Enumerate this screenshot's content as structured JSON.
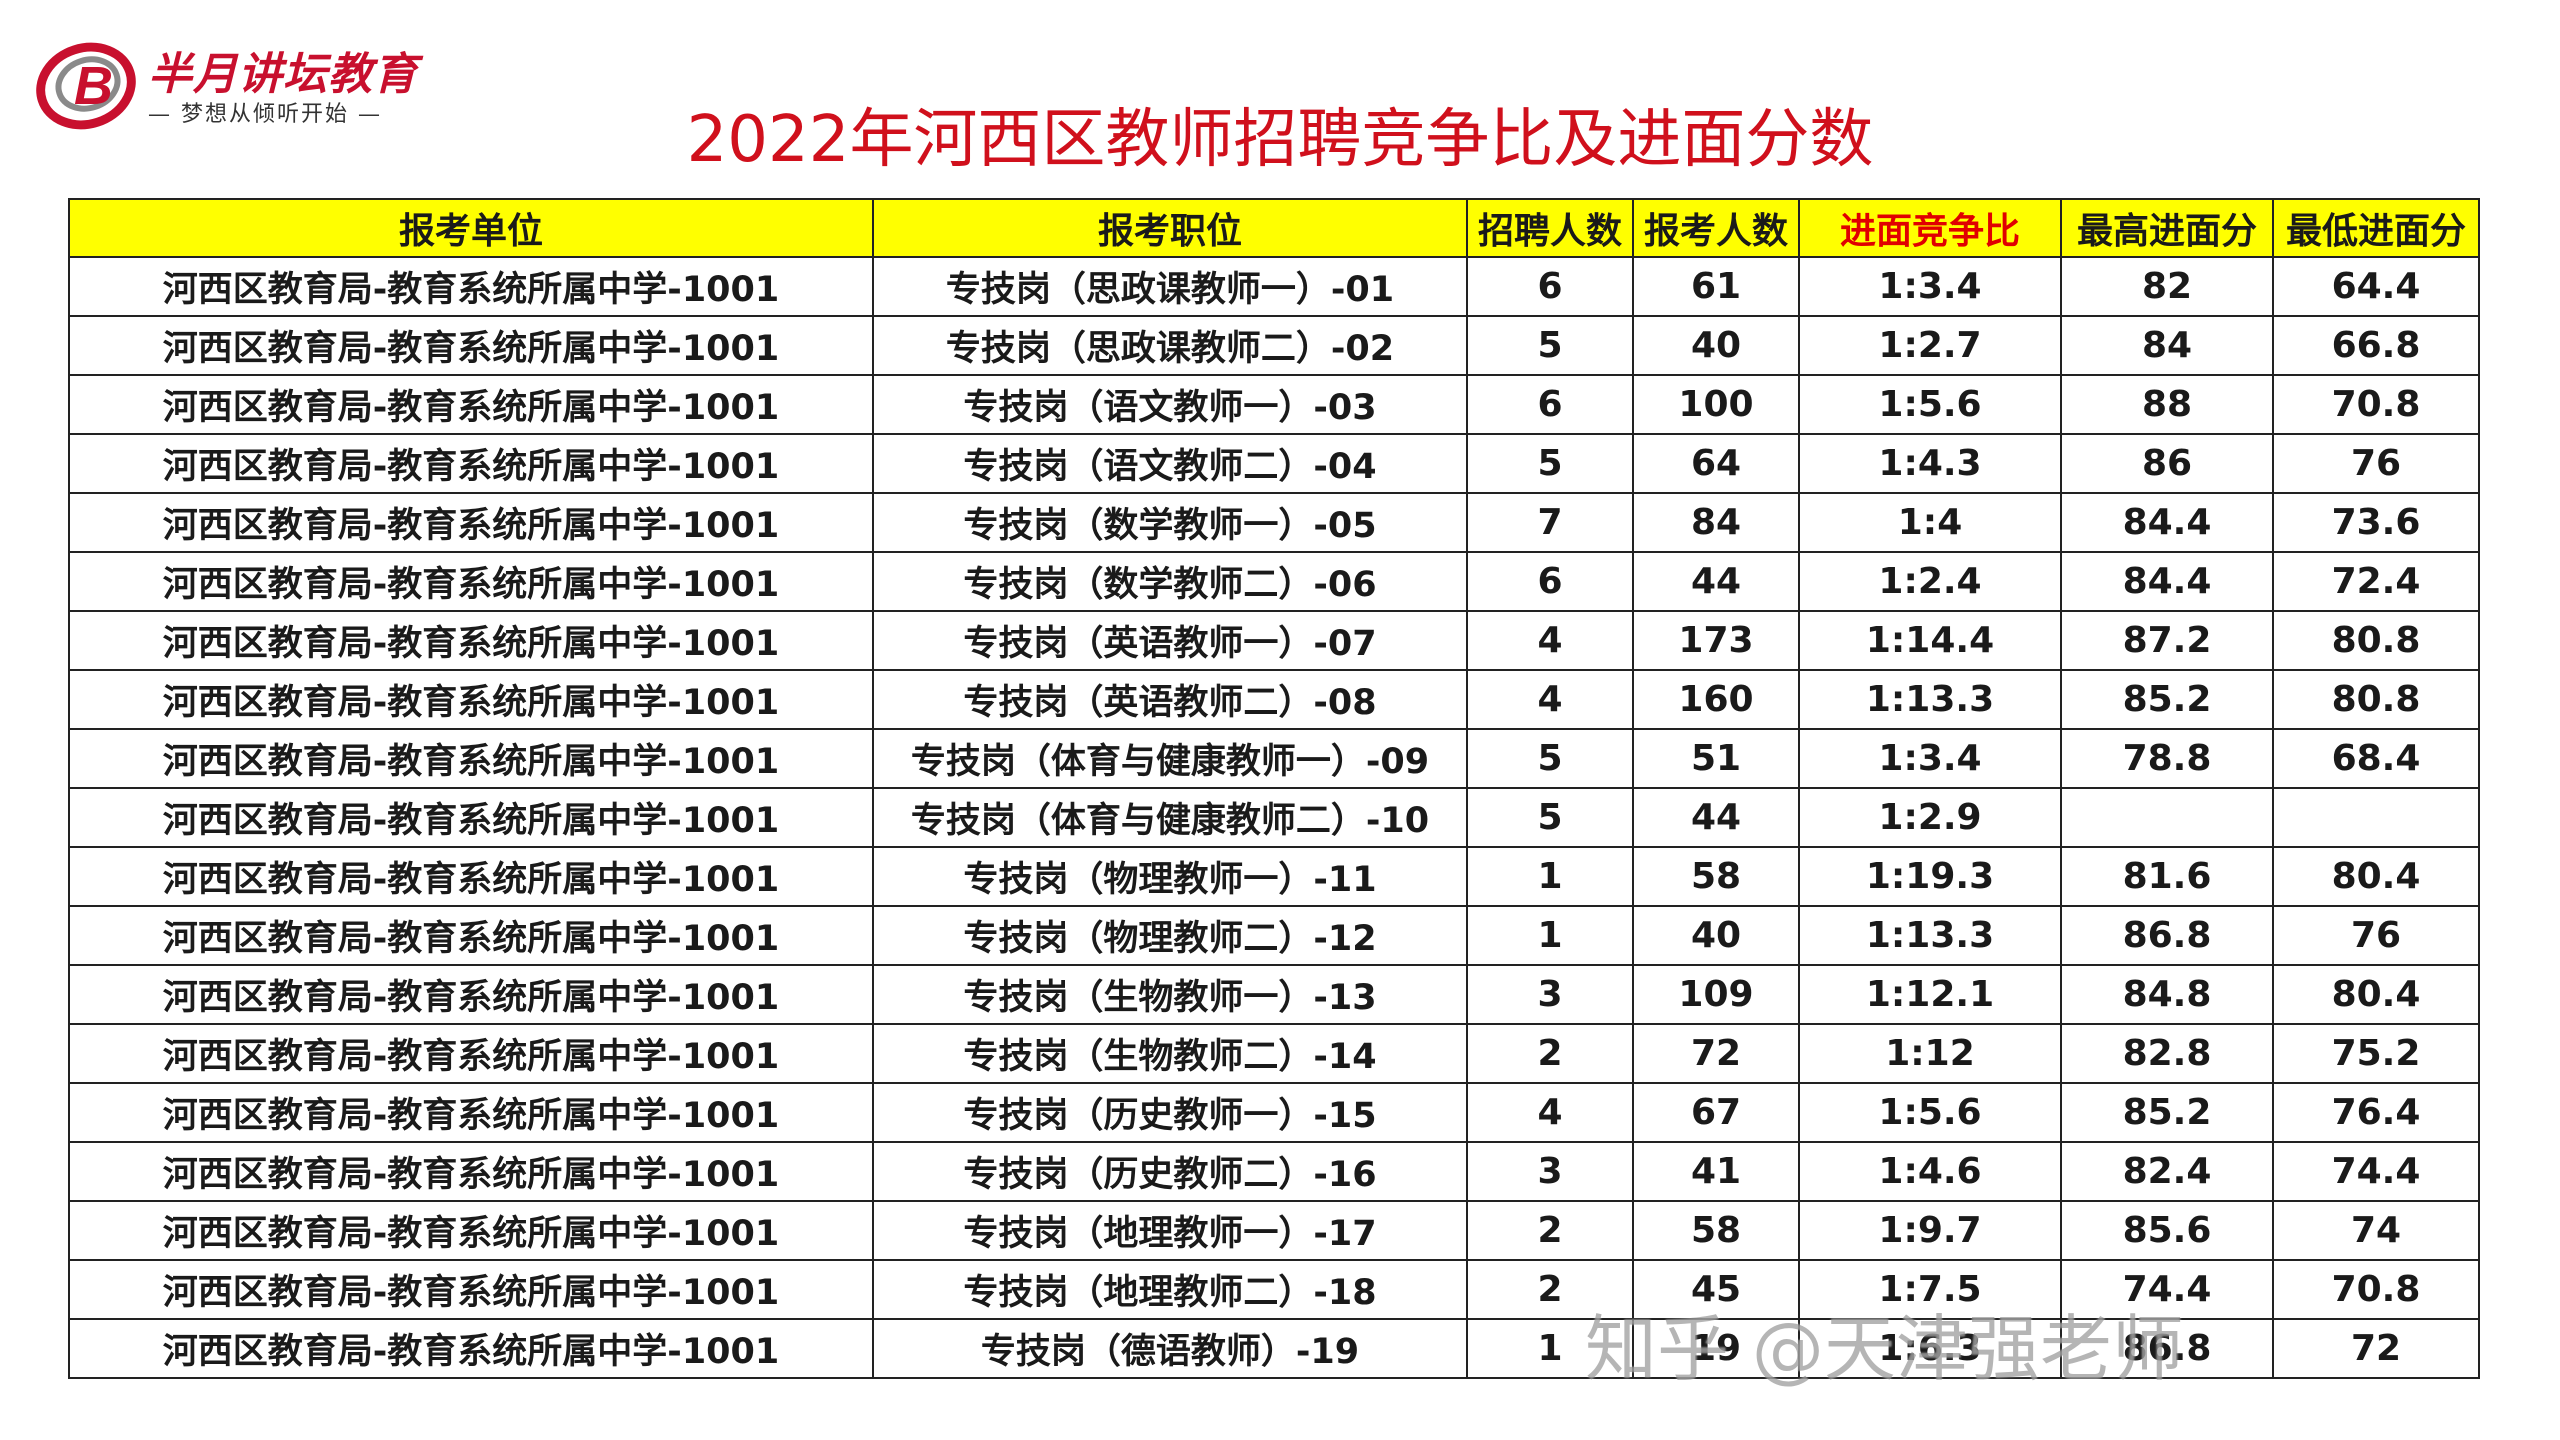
{
  "logo": {
    "brand": "半月讲坛教育",
    "slogan": "— 梦想从倾听开始 —"
  },
  "title": "2022年河西区教师招聘竞争比及进面分数",
  "colors": {
    "title": "#d0101c",
    "header_bg": "#ffff00",
    "highlight_header": "#e00000"
  },
  "table": {
    "headers": [
      "报考单位",
      "报考职位",
      "招聘人数",
      "报考人数",
      "进面竞争比",
      "最高进面分",
      "最低进面分"
    ],
    "rows": [
      [
        "河西区教育局-教育系统所属中学-1001",
        "专技岗（思政课教师一）-01",
        "6",
        "61",
        "1:3.4",
        "82",
        "64.4"
      ],
      [
        "河西区教育局-教育系统所属中学-1001",
        "专技岗（思政课教师二）-02",
        "5",
        "40",
        "1:2.7",
        "84",
        "66.8"
      ],
      [
        "河西区教育局-教育系统所属中学-1001",
        "专技岗（语文教师一）-03",
        "6",
        "100",
        "1:5.6",
        "88",
        "70.8"
      ],
      [
        "河西区教育局-教育系统所属中学-1001",
        "专技岗（语文教师二）-04",
        "5",
        "64",
        "1:4.3",
        "86",
        "76"
      ],
      [
        "河西区教育局-教育系统所属中学-1001",
        "专技岗（数学教师一）-05",
        "7",
        "84",
        "1:4",
        "84.4",
        "73.6"
      ],
      [
        "河西区教育局-教育系统所属中学-1001",
        "专技岗（数学教师二）-06",
        "6",
        "44",
        "1:2.4",
        "84.4",
        "72.4"
      ],
      [
        "河西区教育局-教育系统所属中学-1001",
        "专技岗（英语教师一）-07",
        "4",
        "173",
        "1:14.4",
        "87.2",
        "80.8"
      ],
      [
        "河西区教育局-教育系统所属中学-1001",
        "专技岗（英语教师二）-08",
        "4",
        "160",
        "1:13.3",
        "85.2",
        "80.8"
      ],
      [
        "河西区教育局-教育系统所属中学-1001",
        "专技岗（体育与健康教师一）-09",
        "5",
        "51",
        "1:3.4",
        "78.8",
        "68.4"
      ],
      [
        "河西区教育局-教育系统所属中学-1001",
        "专技岗（体育与健康教师二）-10",
        "5",
        "44",
        "1:2.9",
        "",
        ""
      ],
      [
        "河西区教育局-教育系统所属中学-1001",
        "专技岗（物理教师一）-11",
        "1",
        "58",
        "1:19.3",
        "81.6",
        "80.4"
      ],
      [
        "河西区教育局-教育系统所属中学-1001",
        "专技岗（物理教师二）-12",
        "1",
        "40",
        "1:13.3",
        "86.8",
        "76"
      ],
      [
        "河西区教育局-教育系统所属中学-1001",
        "专技岗（生物教师一）-13",
        "3",
        "109",
        "1:12.1",
        "84.8",
        "80.4"
      ],
      [
        "河西区教育局-教育系统所属中学-1001",
        "专技岗（生物教师二）-14",
        "2",
        "72",
        "1:12",
        "82.8",
        "75.2"
      ],
      [
        "河西区教育局-教育系统所属中学-1001",
        "专技岗（历史教师一）-15",
        "4",
        "67",
        "1:5.6",
        "85.2",
        "76.4"
      ],
      [
        "河西区教育局-教育系统所属中学-1001",
        "专技岗（历史教师二）-16",
        "3",
        "41",
        "1:4.6",
        "82.4",
        "74.4"
      ],
      [
        "河西区教育局-教育系统所属中学-1001",
        "专技岗（地理教师一）-17",
        "2",
        "58",
        "1:9.7",
        "85.6",
        "74"
      ],
      [
        "河西区教育局-教育系统所属中学-1001",
        "专技岗（地理教师二）-18",
        "2",
        "45",
        "1:7.5",
        "74.4",
        "70.8"
      ],
      [
        "河西区教育局-教育系统所属中学-1001",
        "专技岗（德语教师）-19",
        "1",
        "19",
        "1:6.3",
        "86.8",
        "72"
      ]
    ]
  },
  "watermark": "知乎 @天津强老师"
}
